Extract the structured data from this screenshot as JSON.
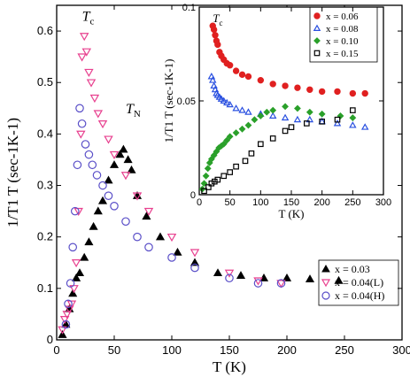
{
  "chart_data": [
    {
      "type": "scatter",
      "xlabel": "T (K)",
      "ylabel": "1/T1 T (sec-1K-1)",
      "xlim": [
        0,
        300
      ],
      "ylim": [
        0,
        0.65
      ],
      "xticks": [
        0,
        50,
        100,
        150,
        200,
        250,
        300
      ],
      "yticks": [
        0,
        0.1,
        0.2,
        0.3,
        0.4,
        0.5,
        0.6
      ],
      "legend_position": "bottom-right",
      "annotations": [
        {
          "text": "T",
          "sub": "c",
          "x": 22,
          "y": 0.62
        },
        {
          "text": "T",
          "sub": "N",
          "x": 60,
          "y": 0.44
        }
      ],
      "series": [
        {
          "name": "x = 0.03",
          "marker": "filled-triangle",
          "color": "#000000",
          "x": [
            5,
            8,
            11,
            14,
            17,
            20,
            24,
            28,
            32,
            36,
            40,
            45,
            50,
            55,
            58,
            62,
            65,
            70,
            78,
            90,
            105,
            120,
            140,
            160,
            180,
            200,
            220,
            245
          ],
          "y": [
            0.01,
            0.03,
            0.06,
            0.09,
            0.12,
            0.13,
            0.16,
            0.19,
            0.22,
            0.25,
            0.27,
            0.31,
            0.34,
            0.36,
            0.37,
            0.35,
            0.33,
            0.28,
            0.24,
            0.2,
            0.17,
            0.15,
            0.13,
            0.125,
            0.12,
            0.12,
            0.118,
            0.115
          ]
        },
        {
          "name": "x = 0.04(L)",
          "marker": "open-triangle-down",
          "color": "#e8408f",
          "x": [
            5,
            7,
            9,
            11,
            13,
            15,
            17,
            19,
            21,
            22,
            24,
            26,
            28,
            30,
            33,
            36,
            40,
            45,
            50,
            60,
            70,
            80,
            100,
            120,
            150,
            175,
            195
          ],
          "y": [
            0.02,
            0.04,
            0.05,
            0.06,
            0.07,
            0.1,
            0.15,
            0.25,
            0.4,
            0.55,
            0.59,
            0.56,
            0.52,
            0.5,
            0.47,
            0.44,
            0.42,
            0.39,
            0.36,
            0.32,
            0.28,
            0.25,
            0.2,
            0.17,
            0.13,
            0.115,
            0.11
          ]
        },
        {
          "name": "x = 0.04(H)",
          "marker": "open-circle",
          "color": "#5a4fc8",
          "x": [
            8,
            10,
            12,
            14,
            16,
            18,
            20,
            22,
            25,
            28,
            31,
            35,
            40,
            45,
            50,
            60,
            70,
            80,
            100,
            120,
            150,
            175,
            195
          ],
          "y": [
            0.03,
            0.07,
            0.11,
            0.18,
            0.25,
            0.34,
            0.45,
            0.42,
            0.38,
            0.36,
            0.34,
            0.32,
            0.3,
            0.28,
            0.26,
            0.23,
            0.2,
            0.18,
            0.16,
            0.14,
            0.12,
            0.11,
            0.11
          ]
        }
      ]
    },
    {
      "type": "scatter",
      "xlabel": "T (K)",
      "ylabel": "1/T1 T (sec-1K-1)",
      "xlim": [
        0,
        300
      ],
      "ylim": [
        0,
        0.1
      ],
      "xticks": [
        0,
        50,
        100,
        150,
        200,
        250,
        300
      ],
      "yticks": [
        0,
        0.05,
        0.1
      ],
      "legend_position": "top-right",
      "annotations": [
        {
          "text": "T",
          "sub": "c",
          "x": 22,
          "y": 0.092
        }
      ],
      "series": [
        {
          "name": "x = 0.06",
          "marker": "filled-circle",
          "color": "#e02020",
          "x": [
            22,
            24,
            26,
            28,
            30,
            33,
            36,
            40,
            45,
            50,
            60,
            70,
            80,
            100,
            120,
            140,
            160,
            180,
            200,
            225,
            250,
            270
          ],
          "y": [
            0.09,
            0.088,
            0.085,
            0.082,
            0.08,
            0.076,
            0.074,
            0.072,
            0.07,
            0.069,
            0.066,
            0.064,
            0.063,
            0.061,
            0.059,
            0.058,
            0.057,
            0.056,
            0.055,
            0.055,
            0.054,
            0.054
          ]
        },
        {
          "name": "x = 0.08",
          "marker": "open-triangle",
          "color": "#2a50e0",
          "x": [
            20,
            22,
            24,
            26,
            28,
            30,
            33,
            36,
            40,
            45,
            50,
            60,
            70,
            80,
            100,
            120,
            140,
            160,
            180,
            200,
            225,
            250,
            270
          ],
          "y": [
            0.063,
            0.061,
            0.058,
            0.056,
            0.054,
            0.053,
            0.052,
            0.051,
            0.05,
            0.049,
            0.048,
            0.046,
            0.045,
            0.044,
            0.043,
            0.042,
            0.041,
            0.04,
            0.04,
            0.039,
            0.038,
            0.037,
            0.036
          ]
        },
        {
          "name": "x = 0.10",
          "marker": "filled-diamond",
          "color": "#2aa02a",
          "x": [
            5,
            8,
            11,
            14,
            17,
            20,
            24,
            28,
            32,
            36,
            40,
            45,
            50,
            60,
            70,
            80,
            90,
            100,
            110,
            120,
            140,
            160,
            180,
            200,
            230,
            250
          ],
          "y": [
            0.003,
            0.006,
            0.01,
            0.014,
            0.017,
            0.019,
            0.021,
            0.023,
            0.025,
            0.026,
            0.027,
            0.029,
            0.031,
            0.033,
            0.035,
            0.037,
            0.04,
            0.042,
            0.044,
            0.045,
            0.047,
            0.046,
            0.044,
            0.043,
            0.042,
            0.041
          ]
        },
        {
          "name": "x = 0.15",
          "marker": "open-square",
          "color": "#000000",
          "x": [
            8,
            15,
            20,
            25,
            30,
            40,
            50,
            60,
            75,
            85,
            100,
            120,
            140,
            150,
            175,
            200,
            225,
            250
          ],
          "y": [
            0.002,
            0.004,
            0.006,
            0.007,
            0.008,
            0.01,
            0.012,
            0.015,
            0.018,
            0.022,
            0.027,
            0.03,
            0.034,
            0.036,
            0.038,
            0.039,
            0.04,
            0.045
          ]
        }
      ]
    }
  ]
}
